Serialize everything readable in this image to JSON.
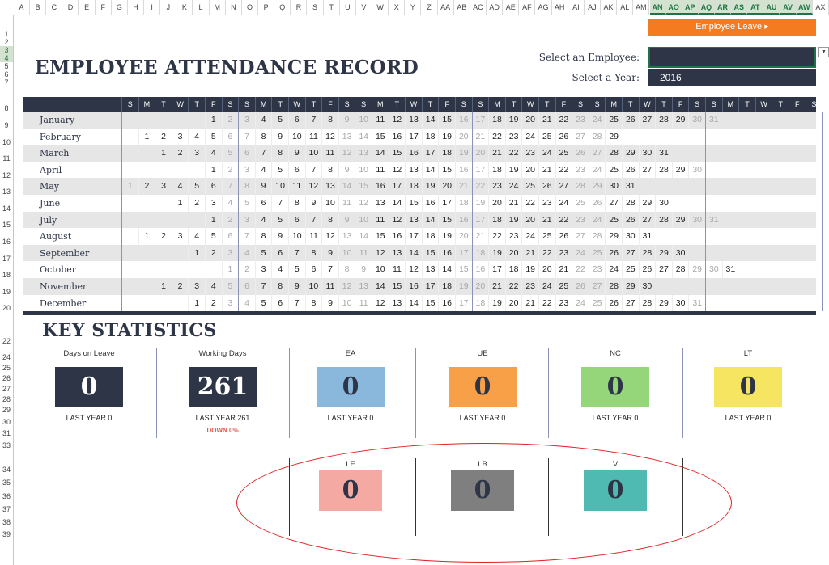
{
  "spreadsheet": {
    "columns": [
      "A",
      "B",
      "C",
      "D",
      "E",
      "F",
      "G",
      "H",
      "I",
      "J",
      "K",
      "L",
      "M",
      "N",
      "O",
      "P",
      "Q",
      "R",
      "S",
      "T",
      "U",
      "V",
      "W",
      "X",
      "Y",
      "Z",
      "AA",
      "AB",
      "AC",
      "AD",
      "AE",
      "AF",
      "AG",
      "AH",
      "AI",
      "AJ",
      "AK",
      "AL",
      "AM",
      "AN",
      "AO",
      "AP",
      "AQ",
      "AR",
      "AS",
      "AT",
      "AU",
      "AV",
      "AW",
      "AX"
    ],
    "selected_columns": [
      "AN",
      "AO",
      "AP",
      "AQ",
      "AR",
      "AS",
      "AT",
      "AU",
      "AV",
      "AW"
    ],
    "rows": [
      "1",
      "2",
      "3",
      "4",
      "5",
      "6",
      "7",
      "8",
      "9",
      "10",
      "11",
      "12",
      "13",
      "14",
      "15",
      "16",
      "17",
      "18",
      "19",
      "20",
      "22",
      "24",
      "25",
      "26",
      "27",
      "28",
      "29",
      "30",
      "31",
      "33",
      "34",
      "35",
      "36",
      "37",
      "38",
      "39"
    ],
    "selected_rows": [
      "3",
      "4"
    ]
  },
  "header": {
    "employee_leave_button": "Employee Leave ▸",
    "title": "EMPLOYEE ATTENDANCE RECORD",
    "select_employee_label": "Select an Employee:",
    "select_employee_value": "",
    "select_year_label": "Select a Year:",
    "select_year_value": "2016",
    "dropdown_icon": "chevron-down-icon"
  },
  "calendar": {
    "day_headers": [
      "S",
      "M",
      "T",
      "W",
      "T",
      "F",
      "S",
      "S",
      "M",
      "T",
      "W",
      "T",
      "F",
      "S",
      "S",
      "M",
      "T",
      "W",
      "T",
      "F",
      "S",
      "S",
      "M",
      "T",
      "W",
      "T",
      "F",
      "S",
      "S",
      "M",
      "T",
      "W",
      "T",
      "F",
      "S",
      "S",
      "M",
      "T",
      "W",
      "T",
      "F",
      "S"
    ],
    "months": [
      {
        "name": "January",
        "offset": 5,
        "days": 31
      },
      {
        "name": "February",
        "offset": 1,
        "days": 29
      },
      {
        "name": "March",
        "offset": 2,
        "days": 31
      },
      {
        "name": "April",
        "offset": 5,
        "days": 30
      },
      {
        "name": "May",
        "offset": 0,
        "days": 31
      },
      {
        "name": "June",
        "offset": 3,
        "days": 30
      },
      {
        "name": "July",
        "offset": 5,
        "days": 31
      },
      {
        "name": "August",
        "offset": 1,
        "days": 31
      },
      {
        "name": "September",
        "offset": 4,
        "days": 30
      },
      {
        "name": "October",
        "offset": 6,
        "days": 31
      },
      {
        "name": "November",
        "offset": 2,
        "days": 30
      },
      {
        "name": "December",
        "offset": 4,
        "days": 31
      }
    ]
  },
  "statistics": {
    "title": "KEY STATISTICS",
    "cards": [
      {
        "label": "Days on Leave",
        "value": "0",
        "last_year": "LAST YEAR 0",
        "color": "#2e3547",
        "dark": true
      },
      {
        "label": "Working Days",
        "value": "261",
        "last_year": "LAST YEAR 261",
        "change": "DOWN 0%",
        "color": "#2e3547",
        "dark": true
      },
      {
        "label": "EA",
        "value": "0",
        "last_year": "LAST YEAR 0",
        "color": "#8ab8dd"
      },
      {
        "label": "UE",
        "value": "0",
        "last_year": "LAST YEAR 0",
        "color": "#f7a048"
      },
      {
        "label": "NC",
        "value": "0",
        "last_year": "LAST YEAR 0",
        "color": "#96d67a"
      },
      {
        "label": "LT",
        "value": "0",
        "last_year": "LAST YEAR 0",
        "color": "#f5e560"
      }
    ],
    "cards_row2": [
      {
        "label": "LE",
        "value": "0",
        "color": "#f4aaa3"
      },
      {
        "label": "LB",
        "value": "0",
        "color": "#7f7f7f"
      },
      {
        "label": "V",
        "value": "0",
        "color": "#4fbab1"
      }
    ]
  },
  "colors": {
    "navy": "#2e3547",
    "orange": "#f47b20",
    "annotation_red": "#e32020"
  }
}
